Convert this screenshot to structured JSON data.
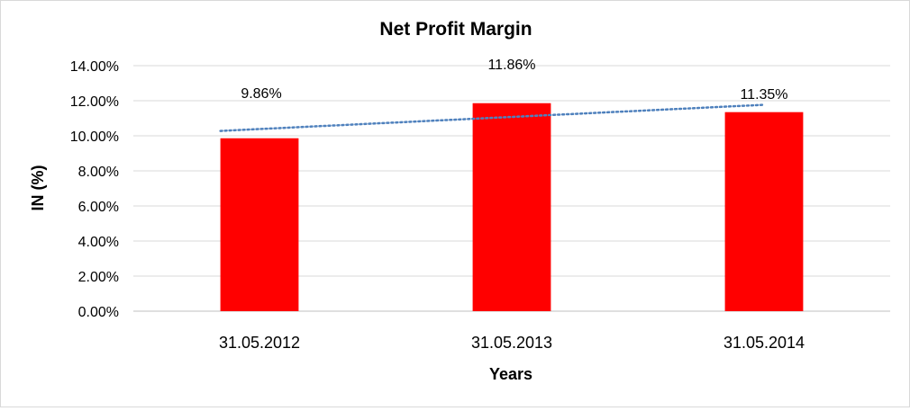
{
  "chart_data": {
    "type": "bar",
    "title": "Net Profit Margin",
    "xlabel": "Years",
    "ylabel": "IN (%)",
    "categories": [
      "31.05.2012",
      "31.05.2013",
      "31.05.2014"
    ],
    "values": [
      9.86,
      11.86,
      11.35
    ],
    "data_labels": [
      "9.86%",
      "11.86%",
      "11.35%"
    ],
    "ylim": [
      0,
      14
    ],
    "yticks": [
      "0.00%",
      "2.00%",
      "4.00%",
      "6.00%",
      "8.00%",
      "10.00%",
      "12.00%",
      "14.00%"
    ],
    "grid": true,
    "trendline": "linear, dotted",
    "bar_color": "#ff0000",
    "trendline_color": "#4f81bd",
    "grid_color": "#d9d9d9"
  }
}
